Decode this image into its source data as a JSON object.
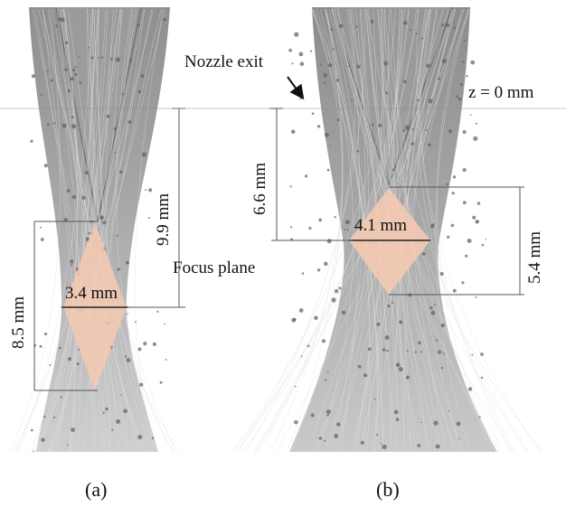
{
  "colors": {
    "background": "#ffffff",
    "plume": "#9a9a9a",
    "plume_light": "#c6c6c6",
    "streak": "#8f8f8f",
    "focus_diamond": "#f5c9b2",
    "dimension_line": "#555555"
  },
  "panels": [
    {
      "caption": "(a)",
      "dimensions": {
        "waist_width": "3.4 mm",
        "nozzle_to_focus": "9.9 mm",
        "focus_length": "8.5 mm"
      }
    },
    {
      "caption": "(b)",
      "dimensions": {
        "waist_width": "4.1 mm",
        "nozzle_to_focus": "6.6 mm",
        "focus_length": "5.4 mm"
      },
      "annotations": {
        "nozzle_exit": "Nozzle exit",
        "z_origin": "z = 0 mm"
      }
    }
  ],
  "shared": {
    "focus_plane_label": "Focus plane"
  }
}
